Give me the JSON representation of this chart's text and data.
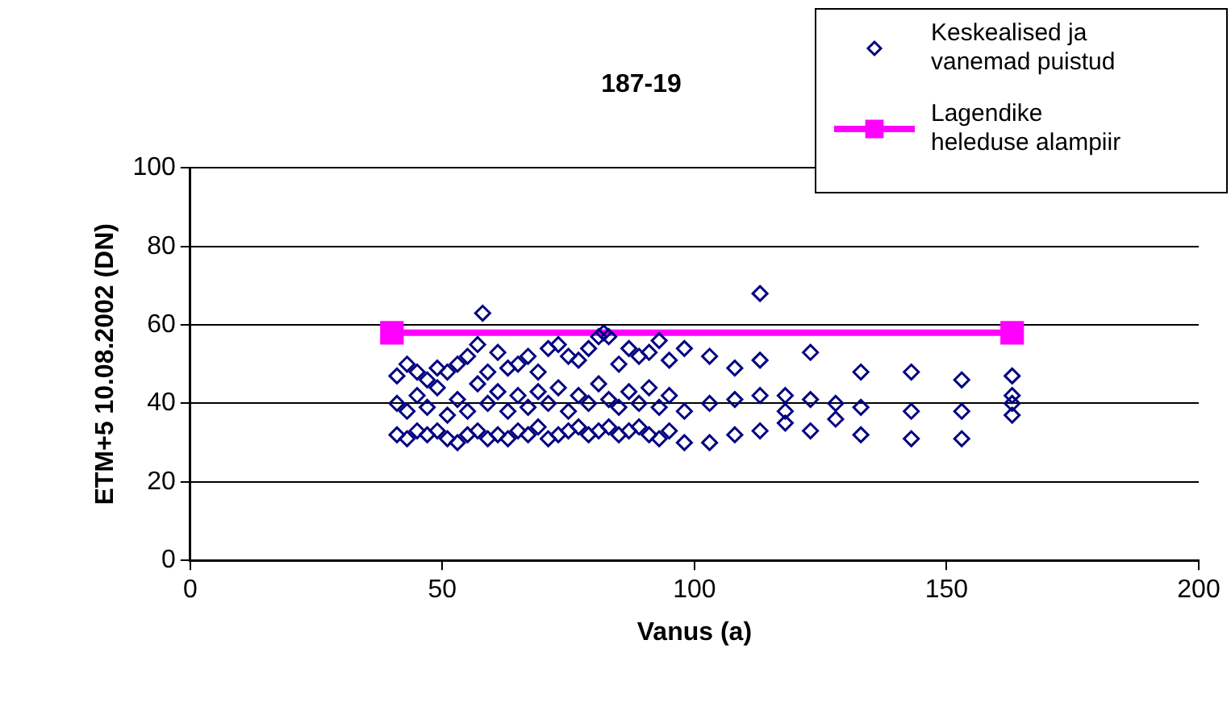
{
  "chart_data": {
    "type": "scatter",
    "title": "187-19",
    "xlabel": "Vanus (a)",
    "ylabel": "ETM+5 10.08.2002 (DN)",
    "xlim": [
      0,
      200
    ],
    "xticks": [
      0,
      50,
      100,
      150,
      200
    ],
    "ylim": [
      0,
      100
    ],
    "yticks": [
      0,
      20,
      40,
      60,
      80,
      100
    ],
    "grid": "y",
    "legend": "top right",
    "series": [
      {
        "name": "Keskealised ja vanemad puistud",
        "type": "scatter",
        "marker": "diamond",
        "color": "#000080",
        "x": [
          41,
          41,
          41,
          43,
          43,
          43,
          45,
          45,
          45,
          47,
          47,
          47,
          49,
          49,
          49,
          51,
          51,
          51,
          53,
          53,
          53,
          55,
          55,
          55,
          57,
          57,
          57,
          58,
          59,
          59,
          59,
          61,
          61,
          61,
          63,
          63,
          63,
          65,
          65,
          65,
          67,
          67,
          67,
          69,
          69,
          69,
          71,
          71,
          71,
          73,
          73,
          73,
          75,
          75,
          75,
          77,
          77,
          77,
          79,
          79,
          79,
          81,
          81,
          81,
          82,
          83,
          83,
          83,
          85,
          85,
          85,
          87,
          87,
          87,
          89,
          89,
          89,
          91,
          91,
          91,
          93,
          93,
          93,
          95,
          95,
          95,
          98,
          98,
          98,
          103,
          103,
          103,
          108,
          108,
          108,
          113,
          113,
          113,
          113,
          118,
          118,
          118,
          123,
          123,
          123,
          128,
          128,
          133,
          133,
          133,
          143,
          143,
          143,
          153,
          153,
          153,
          163,
          163,
          163,
          163
        ],
        "values": [
          32,
          40,
          47,
          31,
          38,
          50,
          33,
          42,
          48,
          32,
          39,
          46,
          33,
          44,
          49,
          31,
          37,
          48,
          30,
          41,
          50,
          32,
          38,
          52,
          33,
          45,
          55,
          63,
          31,
          40,
          48,
          32,
          43,
          53,
          31,
          38,
          49,
          33,
          42,
          50,
          32,
          39,
          52,
          34,
          43,
          48,
          31,
          40,
          54,
          32,
          44,
          55,
          33,
          38,
          52,
          34,
          42,
          51,
          32,
          40,
          54,
          33,
          45,
          57,
          58,
          34,
          41,
          57,
          32,
          39,
          50,
          33,
          43,
          54,
          34,
          40,
          52,
          32,
          44,
          53,
          31,
          39,
          56,
          33,
          42,
          51,
          30,
          38,
          54,
          30,
          40,
          52,
          32,
          41,
          49,
          68,
          33,
          42,
          51,
          35,
          38,
          42,
          33,
          41,
          53,
          36,
          40,
          32,
          39,
          48,
          31,
          38,
          48,
          31,
          38,
          46,
          37,
          40,
          42,
          47
        ]
      },
      {
        "name": "Lagendike heleduse alampiir",
        "type": "line",
        "marker": "square",
        "color": "#ff00ff",
        "x": [
          40,
          163
        ],
        "values": [
          58,
          58
        ]
      }
    ]
  }
}
